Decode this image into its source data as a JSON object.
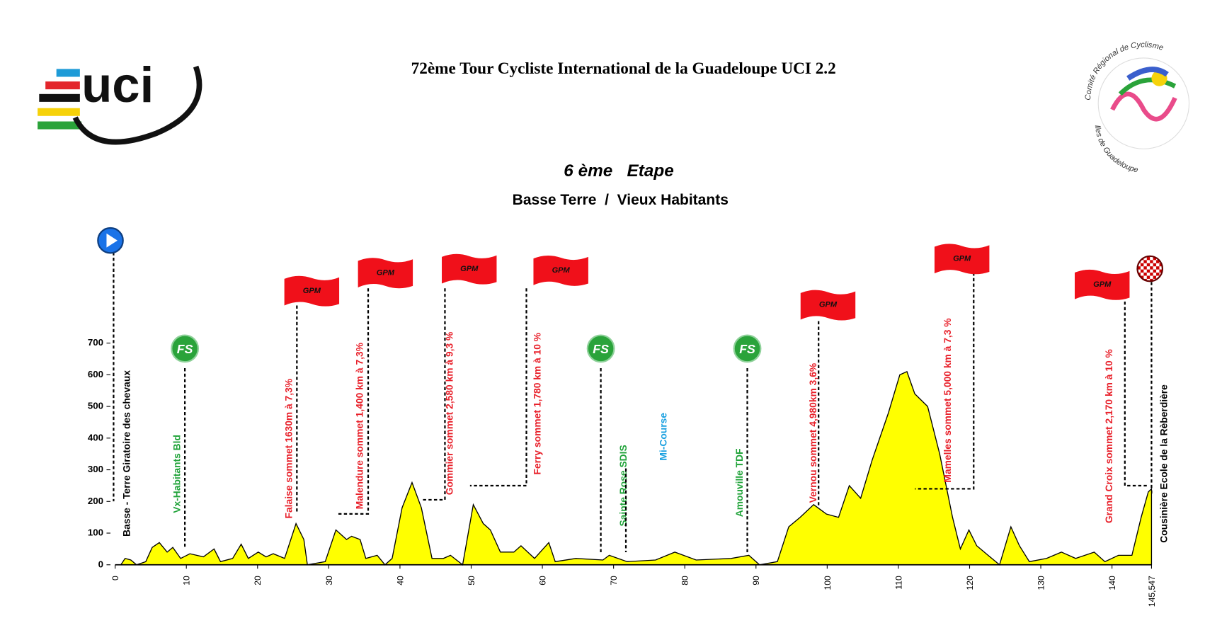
{
  "chart_data": {
    "type": "area",
    "title": "72ème Tour Cycliste International de la Guadeloupe UCI 2.2",
    "subtitle": "6 ème   Etape",
    "route": "Basse Terre  /  Vieux Habitants",
    "logos": {
      "left": "uci",
      "right_top": "Comité Régional de Cyclisme",
      "right_bottom": "Iles de Guadeloupe"
    },
    "color": "#ffff00",
    "x": [
      0,
      0.8,
      1.4,
      2.2,
      3,
      4.3,
      5.2,
      6.2,
      7.3,
      8.1,
      9.2,
      10.5,
      12.4,
      13.9,
      14.8,
      16.5,
      17.7,
      18.7,
      20.1,
      21.2,
      22.2,
      23.8,
      25.4,
      26.5,
      27,
      29.5,
      31,
      32.5,
      33.2,
      34.4,
      35.2,
      36.8,
      37.9,
      38.9,
      40.3,
      41.7,
      43,
      44.5,
      46.1,
      47.1,
      48.8,
      50.3,
      51.7,
      52.7,
      54.1,
      56,
      57,
      58.9,
      60.9,
      61.8,
      64.7,
      68.5,
      69.4,
      71.9,
      75.9,
      78.6,
      81.6,
      86.5,
      89,
      90.5,
      93,
      94.6,
      96.2,
      98.1,
      99.9,
      101.6,
      103.1,
      104.7,
      106.3,
      108.6,
      110.2,
      111.2,
      112.3,
      114.1,
      115.8,
      117.6,
      118.7,
      119.9,
      121,
      122.6,
      124.2,
      125.8,
      127,
      128.4,
      130.8,
      132.9,
      134.9,
      137.5,
      139,
      140.9,
      142.8,
      144.1,
      145.1,
      145.547
    ],
    "values": [
      0,
      0,
      20,
      15,
      0,
      10,
      55,
      70,
      40,
      55,
      20,
      35,
      25,
      50,
      10,
      20,
      65,
      20,
      40,
      25,
      35,
      20,
      130,
      80,
      0,
      10,
      110,
      80,
      90,
      80,
      20,
      30,
      0,
      20,
      180,
      260,
      180,
      20,
      20,
      30,
      0,
      190,
      130,
      110,
      40,
      40,
      60,
      20,
      70,
      10,
      20,
      15,
      30,
      10,
      15,
      40,
      15,
      20,
      30,
      0,
      10,
      120,
      150,
      190,
      160,
      150,
      250,
      210,
      330,
      480,
      600,
      610,
      540,
      500,
      350,
      150,
      50,
      110,
      60,
      30,
      0,
      120,
      60,
      10,
      20,
      40,
      20,
      40,
      10,
      30,
      30,
      150,
      230,
      240
    ],
    "xlim": [
      0,
      145.547
    ],
    "xticks": [
      0,
      10,
      20,
      30,
      40,
      50,
      60,
      70,
      80,
      90,
      100,
      110,
      120,
      130,
      140,
      {
        "value": 145.547,
        "label": "145,547"
      }
    ],
    "ylim": [
      0,
      700
    ],
    "yticks": [
      0,
      100,
      200,
      300,
      400,
      500,
      600,
      700
    ],
    "annotations": [
      {
        "text": "Basse - Terre Giratoire des chevaux"
      },
      {
        "text": "Vx-Habitants Bld",
        "flag": "FS"
      },
      {
        "text": "Falaise sommet  1630m à 7,3%",
        "flag": "GPM"
      },
      {
        "text": "Malendure sommet  1,400 km  à 7,3%",
        "flag": "GPM"
      },
      {
        "text": "Gommier sommet 2,580 km  à 9,3 %",
        "flag": "GPM"
      },
      {
        "text": "Ferry sommet 1,780 km  à 10 %",
        "flag": "GPM"
      },
      {
        "text": "Sainte  Rose  SDIS",
        "flag": "FS"
      },
      {
        "text": "Mi-Course"
      },
      {
        "text": "Amouville TDF",
        "flag": "FS"
      },
      {
        "text": "Vernou sommet 4,980km  3,6%",
        "flag": "GPM"
      },
      {
        "text": "Mamelles sommet 5,000 km  à 7,3 %",
        "flag": "GPM"
      },
      {
        "text": "Grand Croix sommet 2,170 km  à 10 %",
        "flag": "GPM"
      },
      {
        "text": "Cousinière Ecole de la Rèberdière"
      }
    ]
  }
}
